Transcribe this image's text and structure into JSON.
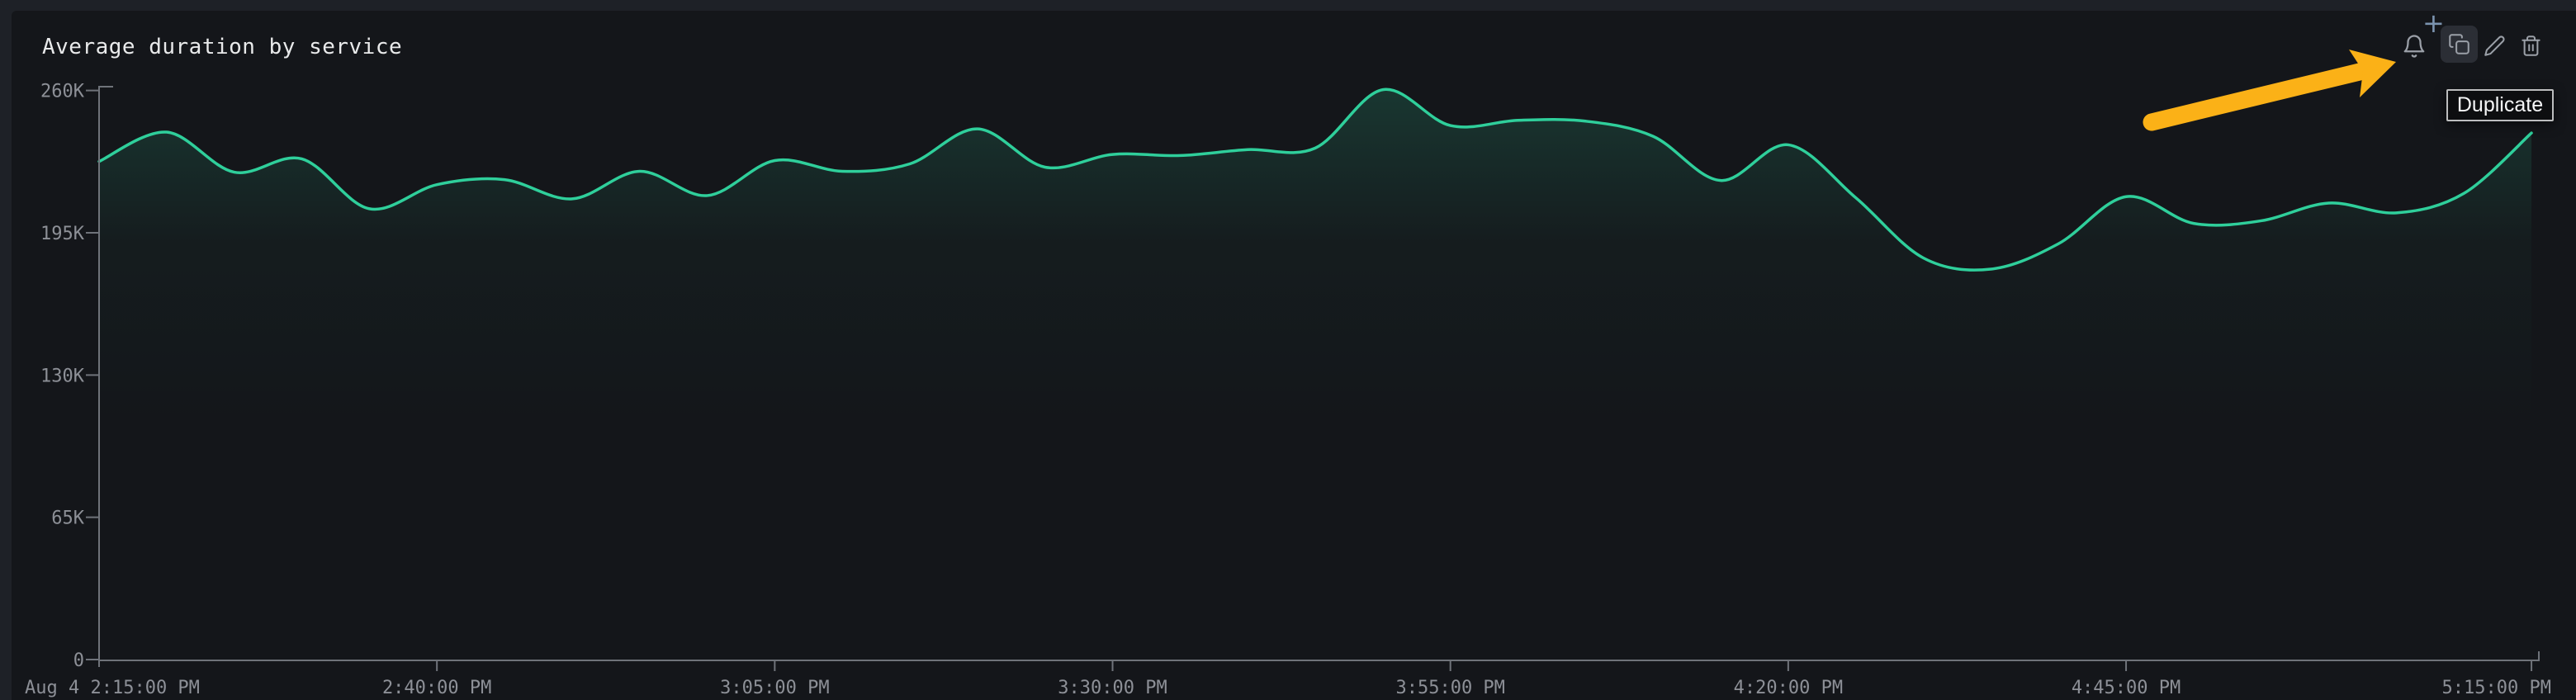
{
  "panel": {
    "title": "Average duration by service",
    "toolbar": {
      "alert_badge": "+",
      "icons": [
        "bell-icon",
        "copy-icon",
        "pencil-icon",
        "trash-icon"
      ],
      "tooltip": "Duplicate"
    }
  },
  "colors": {
    "page_bg": "#1e2127",
    "panel_bg": "#14161a",
    "title": "#e9eaeb",
    "axis": "#6f737a",
    "tick_label": "#8d9097",
    "line": "#2fcf9b",
    "area_rgb": "47,207,155",
    "arrow": "#fbb117",
    "icon": "#9ba0a8",
    "plus": "#7b93af",
    "button_hover_bg": "#2b2e35",
    "tooltip_bg": "#0d0e10",
    "tooltip_border": "#bcbdbe",
    "tooltip_text": "#f5f6f7"
  },
  "chart_data": {
    "type": "line",
    "title": "Average duration by service",
    "x_times": [
      "2:15 PM",
      "2:20 PM",
      "2:25 PM",
      "2:30 PM",
      "2:35 PM",
      "2:40 PM",
      "2:45 PM",
      "2:50 PM",
      "2:55 PM",
      "3:00 PM",
      "3:05 PM",
      "3:10 PM",
      "3:15 PM",
      "3:20 PM",
      "3:25 PM",
      "3:30 PM",
      "3:35 PM",
      "3:40 PM",
      "3:45 PM",
      "3:50 PM",
      "3:55 PM",
      "4:00 PM",
      "4:05 PM",
      "4:10 PM",
      "4:15 PM",
      "4:20 PM",
      "4:25 PM",
      "4:30 PM",
      "4:35 PM",
      "4:40 PM",
      "4:45 PM",
      "4:50 PM",
      "4:55 PM",
      "5:00 PM",
      "5:05 PM",
      "5:10 PM",
      "5:15 PM"
    ],
    "values": [
      227600,
      241000,
      222700,
      228800,
      206000,
      217000,
      219300,
      210500,
      223100,
      212000,
      228000,
      223100,
      226500,
      242500,
      225000,
      230800,
      230300,
      233000,
      233700,
      260400,
      244000,
      246400,
      246000,
      239100,
      218900,
      235200,
      211000,
      183500,
      178400,
      190000,
      211500,
      199300,
      200500,
      208600,
      204100,
      213000,
      240600
    ],
    "x_axis": {
      "start": "Aug 4 2:15:00 PM",
      "end": "5:15:00 PM",
      "tick_labels": [
        "Aug 4 2:15:00 PM",
        "2:40:00 PM",
        "3:05:00 PM",
        "3:30:00 PM",
        "3:55:00 PM",
        "4:20:00 PM",
        "4:45:00 PM",
        "5:15:00 PM"
      ]
    },
    "y_axis": {
      "tick_labels": [
        "0",
        "65K",
        "130K",
        "195K",
        "260K"
      ],
      "tick_values": [
        0,
        65000,
        130000,
        195000,
        260000
      ],
      "ylim": [
        0,
        265000
      ]
    },
    "grid": false,
    "legend": false
  }
}
